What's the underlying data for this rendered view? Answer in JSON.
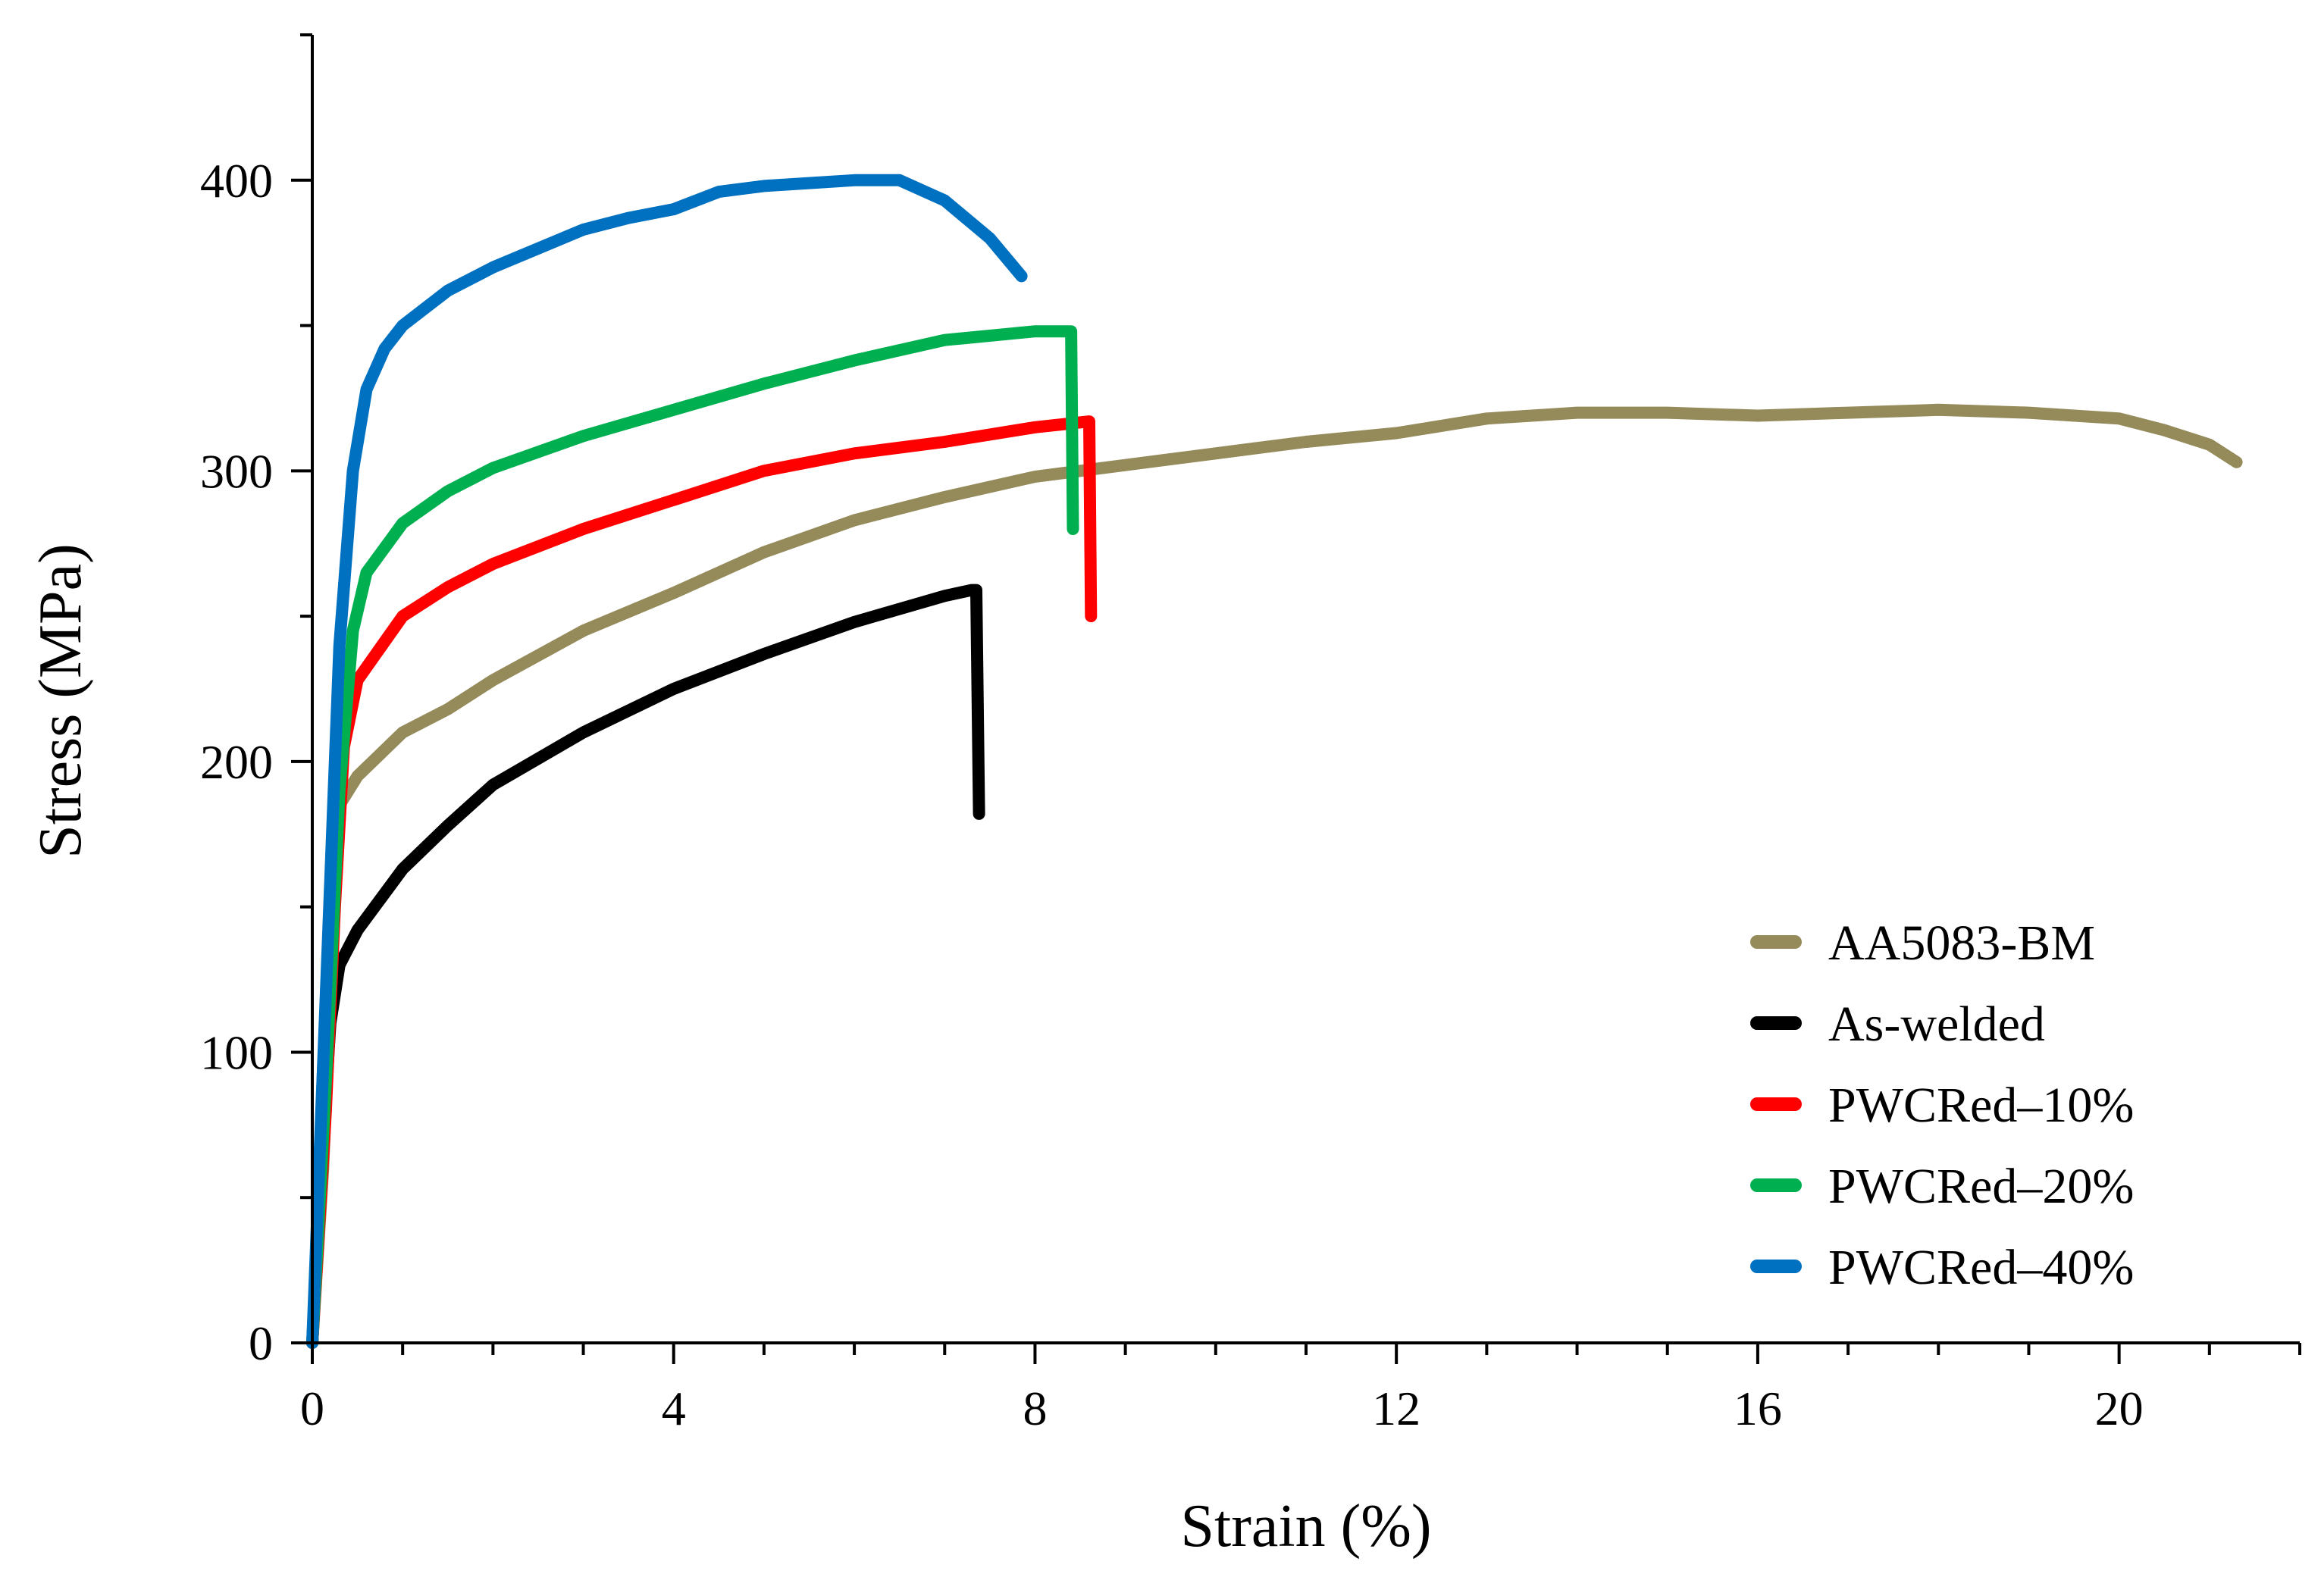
{
  "chart_data": {
    "type": "line",
    "title": "",
    "xlabel": "Strain (%)",
    "ylabel": "Stress (MPa)",
    "xlim": [
      0,
      22
    ],
    "ylim": [
      0,
      450
    ],
    "x_ticks": [
      "0",
      "4",
      "8",
      "12",
      "16",
      "20"
    ],
    "y_ticks": [
      "0",
      "100",
      "200",
      "300",
      "400"
    ],
    "grid": false,
    "legend_position": "bottom-right",
    "series": [
      {
        "name": "AA5083-BM",
        "color": "#958A5A",
        "points": [
          [
            0,
            0
          ],
          [
            0.12,
            60
          ],
          [
            0.2,
            120
          ],
          [
            0.26,
            170
          ],
          [
            0.3,
            185
          ],
          [
            0.5,
            195
          ],
          [
            1,
            210
          ],
          [
            1.5,
            218
          ],
          [
            2,
            228
          ],
          [
            3,
            245
          ],
          [
            4,
            258
          ],
          [
            5,
            272
          ],
          [
            6,
            283
          ],
          [
            7,
            291
          ],
          [
            8,
            298
          ],
          [
            9,
            302
          ],
          [
            10,
            306
          ],
          [
            11,
            310
          ],
          [
            12,
            313
          ],
          [
            13,
            318
          ],
          [
            14,
            320
          ],
          [
            15,
            320
          ],
          [
            16,
            319
          ],
          [
            17,
            320
          ],
          [
            18,
            321
          ],
          [
            19,
            320
          ],
          [
            20,
            318
          ],
          [
            20.5,
            314
          ],
          [
            21,
            309
          ],
          [
            21.3,
            303
          ]
        ]
      },
      {
        "name": "As-welded",
        "color": "#000000",
        "points": [
          [
            0,
            0
          ],
          [
            0.1,
            60
          ],
          [
            0.2,
            110
          ],
          [
            0.3,
            130
          ],
          [
            0.5,
            142
          ],
          [
            1,
            163
          ],
          [
            1.5,
            178
          ],
          [
            2,
            192
          ],
          [
            3,
            210
          ],
          [
            4,
            225
          ],
          [
            5,
            237
          ],
          [
            6,
            248
          ],
          [
            7,
            257
          ],
          [
            7.3,
            259
          ],
          [
            7.35,
            259
          ],
          [
            7.38,
            182
          ]
        ]
      },
      {
        "name": "PWCRed–10%",
        "color": "#FF0000",
        "points": [
          [
            0,
            0
          ],
          [
            0.15,
            80
          ],
          [
            0.25,
            150
          ],
          [
            0.35,
            205
          ],
          [
            0.5,
            228
          ],
          [
            1,
            250
          ],
          [
            1.5,
            260
          ],
          [
            2,
            268
          ],
          [
            3,
            280
          ],
          [
            4,
            290
          ],
          [
            5,
            300
          ],
          [
            6,
            306
          ],
          [
            7,
            310
          ],
          [
            8,
            315
          ],
          [
            8.6,
            317
          ],
          [
            8.62,
            250
          ]
        ]
      },
      {
        "name": "PWCRed–20%",
        "color": "#00B050",
        "points": [
          [
            0,
            0
          ],
          [
            0.15,
            90
          ],
          [
            0.3,
            190
          ],
          [
            0.45,
            245
          ],
          [
            0.6,
            265
          ],
          [
            1,
            282
          ],
          [
            1.5,
            293
          ],
          [
            2,
            301
          ],
          [
            3,
            312
          ],
          [
            4,
            321
          ],
          [
            5,
            330
          ],
          [
            6,
            338
          ],
          [
            7,
            345
          ],
          [
            8,
            348
          ],
          [
            8.4,
            348
          ],
          [
            8.42,
            280
          ]
        ]
      },
      {
        "name": "PWCRed–40%",
        "color": "#0070C0",
        "points": [
          [
            0,
            0
          ],
          [
            0.15,
            120
          ],
          [
            0.3,
            240
          ],
          [
            0.45,
            300
          ],
          [
            0.6,
            328
          ],
          [
            0.8,
            342
          ],
          [
            1,
            350
          ],
          [
            1.5,
            362
          ],
          [
            2,
            370
          ],
          [
            3,
            383
          ],
          [
            3.5,
            387
          ],
          [
            4,
            390
          ],
          [
            4.5,
            396
          ],
          [
            5,
            398
          ],
          [
            5.5,
            399
          ],
          [
            6,
            400
          ],
          [
            6.5,
            400
          ],
          [
            7,
            393
          ],
          [
            7.5,
            380
          ],
          [
            7.85,
            367
          ]
        ]
      }
    ]
  }
}
